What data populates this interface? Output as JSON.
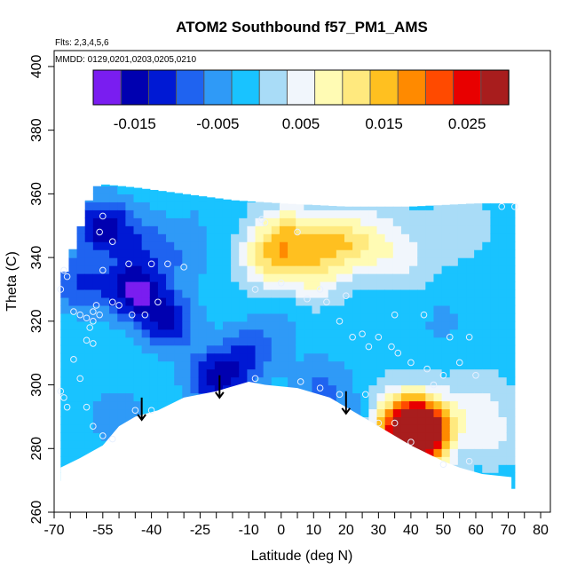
{
  "chart_data": {
    "type": "heatmap",
    "title": "ATOM2 Southbound f57_PM1_AMS",
    "flights_note": "Flts: 2,3,4,5,6",
    "dates_note": "MMDD: 0129,0201,0203,0205,0210",
    "xlabel": "Latitude (deg N)",
    "ylabel": "Theta (C)",
    "xlim": [
      -70,
      83
    ],
    "ylim": [
      260,
      405
    ],
    "x_ticks": [
      -70,
      -55,
      -40,
      -25,
      -10,
      0,
      10,
      20,
      30,
      40,
      50,
      60,
      70,
      80
    ],
    "x_tick_labels": [
      "-70",
      "-55",
      "-40",
      "-25",
      "-10",
      "0",
      "10",
      "20",
      "30",
      "40",
      "50",
      "60",
      "70",
      "80"
    ],
    "y_ticks": [
      260,
      280,
      300,
      320,
      340,
      360,
      380,
      400
    ],
    "y_tick_labels": [
      "260",
      "280",
      "300",
      "320",
      "340",
      "360",
      "380",
      "400"
    ],
    "colorbar": {
      "colors": [
        "#7a1df0",
        "#0000b0",
        "#0019d4",
        "#1f63f0",
        "#2f9af7",
        "#19c3ff",
        "#a9dcf7",
        "#f1f6fc",
        "#fffbb4",
        "#ffe97e",
        "#ffc020",
        "#ff8a00",
        "#ff4a00",
        "#e80000",
        "#a81d1d"
      ],
      "tick_values": [
        "-0.015",
        "-0.005",
        "0.005",
        "0.015",
        "0.025"
      ]
    },
    "surface_profile": [
      [
        -68,
        274
      ],
      [
        -62,
        277
      ],
      [
        -55,
        281
      ],
      [
        -50,
        287
      ],
      [
        -45,
        290
      ],
      [
        -38,
        292
      ],
      [
        -30,
        296
      ],
      [
        -20,
        298
      ],
      [
        -10,
        301
      ],
      [
        -5,
        300
      ],
      [
        5,
        299
      ],
      [
        15,
        296
      ],
      [
        20,
        293
      ],
      [
        25,
        290
      ],
      [
        30,
        287
      ],
      [
        40,
        281
      ],
      [
        50,
        276
      ],
      [
        55,
        274
      ],
      [
        62,
        272
      ],
      [
        71,
        271
      ]
    ],
    "top_profile": [
      [
        -68,
        332
      ],
      [
        -62,
        349
      ],
      [
        -58,
        362
      ],
      [
        -55,
        363
      ],
      [
        -45,
        362
      ],
      [
        -30,
        360
      ],
      [
        -15,
        358
      ],
      [
        0,
        357
      ],
      [
        20,
        356
      ],
      [
        40,
        356
      ],
      [
        60,
        357
      ],
      [
        70,
        357
      ]
    ],
    "anomalies": [
      {
        "lat": -3,
        "theta": 340,
        "value": 0.012
      },
      {
        "lat": 2,
        "theta": 348,
        "value": 0.01
      },
      {
        "lat": 10,
        "theta": 335,
        "value": 0.008
      },
      {
        "lat": 15,
        "theta": 345,
        "value": 0.009
      },
      {
        "lat": 22,
        "theta": 345,
        "value": 0.006
      },
      {
        "lat": 30,
        "theta": 342,
        "value": 0.005
      },
      {
        "lat": 40,
        "theta": 340,
        "value": 0.004
      },
      {
        "lat": 40,
        "theta": 282,
        "value": 0.028
      },
      {
        "lat": 44,
        "theta": 287,
        "value": 0.024
      },
      {
        "lat": 37,
        "theta": 290,
        "value": 0.012
      },
      {
        "lat": 60,
        "theta": 295,
        "value": 0.004
      },
      {
        "lat": 65,
        "theta": 285,
        "value": 0.005
      },
      {
        "lat": -45,
        "theta": 330,
        "value": -0.016
      },
      {
        "lat": -55,
        "theta": 350,
        "value": -0.014
      },
      {
        "lat": -35,
        "theta": 320,
        "value": -0.012
      },
      {
        "lat": -20,
        "theta": 302,
        "value": -0.014
      },
      {
        "lat": -10,
        "theta": 310,
        "value": -0.008
      },
      {
        "lat": -62,
        "theta": 332,
        "value": -0.009
      },
      {
        "lat": -42,
        "theta": 345,
        "value": -0.006
      },
      {
        "lat": 12,
        "theta": 300,
        "value": -0.006
      },
      {
        "lat": 20,
        "theta": 290,
        "value": -0.004
      },
      {
        "lat": 0,
        "theta": 320,
        "value": -0.003
      },
      {
        "lat": -30,
        "theta": 340,
        "value": -0.004
      },
      {
        "lat": 25,
        "theta": 318,
        "value": -0.002
      },
      {
        "lat": 50,
        "theta": 320,
        "value": -0.003
      },
      {
        "lat": -25,
        "theta": 355,
        "value": -0.002
      },
      {
        "lat": 30,
        "theta": 355,
        "value": 0.002
      },
      {
        "lat": -50,
        "theta": 290,
        "value": -0.005
      },
      {
        "lat": 55,
        "theta": 350,
        "value": 0.003
      }
    ],
    "base_value": -0.001,
    "arrows": [
      {
        "lat": -43,
        "theta": 296
      },
      {
        "lat": -19,
        "theta": 303
      },
      {
        "lat": 20,
        "theta": 298
      }
    ],
    "sample_points": [
      [
        -67,
        336
      ],
      [
        -66,
        334
      ],
      [
        -68,
        330
      ],
      [
        -64,
        323
      ],
      [
        -62,
        322
      ],
      [
        -60,
        321
      ],
      [
        -58,
        323
      ],
      [
        -57,
        325
      ],
      [
        -56,
        322
      ],
      [
        -58,
        320
      ],
      [
        -59,
        318
      ],
      [
        -60,
        314
      ],
      [
        -58,
        313
      ],
      [
        -55,
        336
      ],
      [
        -55,
        353
      ],
      [
        -56,
        348
      ],
      [
        -52,
        345
      ],
      [
        -47,
        338
      ],
      [
        -40,
        338
      ],
      [
        -35,
        338
      ],
      [
        -30,
        337
      ],
      [
        -52,
        326
      ],
      [
        -50,
        325
      ],
      [
        -46,
        322
      ],
      [
        -42,
        322
      ],
      [
        -38,
        326
      ],
      [
        -64,
        308
      ],
      [
        -62,
        302
      ],
      [
        -68,
        298
      ],
      [
        -67,
        296
      ],
      [
        -66,
        293
      ],
      [
        -60,
        293
      ],
      [
        -58,
        287
      ],
      [
        -55,
        284
      ],
      [
        -52,
        283
      ],
      [
        -45,
        292
      ],
      [
        -40,
        292
      ],
      [
        -8,
        302
      ],
      [
        -6,
        352
      ],
      [
        -5,
        351
      ],
      [
        5,
        348
      ],
      [
        0,
        332
      ],
      [
        -8,
        330
      ],
      [
        8,
        327
      ],
      [
        12,
        330
      ],
      [
        14,
        326
      ],
      [
        18,
        320
      ],
      [
        20,
        328
      ],
      [
        22,
        315
      ],
      [
        25,
        316
      ],
      [
        27,
        312
      ],
      [
        30,
        315
      ],
      [
        34,
        312
      ],
      [
        36,
        310
      ],
      [
        40,
        307
      ],
      [
        45,
        305
      ],
      [
        50,
        303
      ],
      [
        47,
        300
      ],
      [
        52,
        315
      ],
      [
        55,
        307
      ],
      [
        58,
        315
      ],
      [
        60,
        303
      ],
      [
        35,
        322
      ],
      [
        44,
        322
      ],
      [
        6,
        301
      ],
      [
        12,
        299
      ],
      [
        18,
        297
      ],
      [
        26,
        297
      ],
      [
        30,
        288
      ],
      [
        35,
        288
      ],
      [
        40,
        282
      ],
      [
        50,
        275
      ],
      [
        58,
        276
      ],
      [
        68,
        356
      ],
      [
        72,
        356
      ]
    ]
  }
}
